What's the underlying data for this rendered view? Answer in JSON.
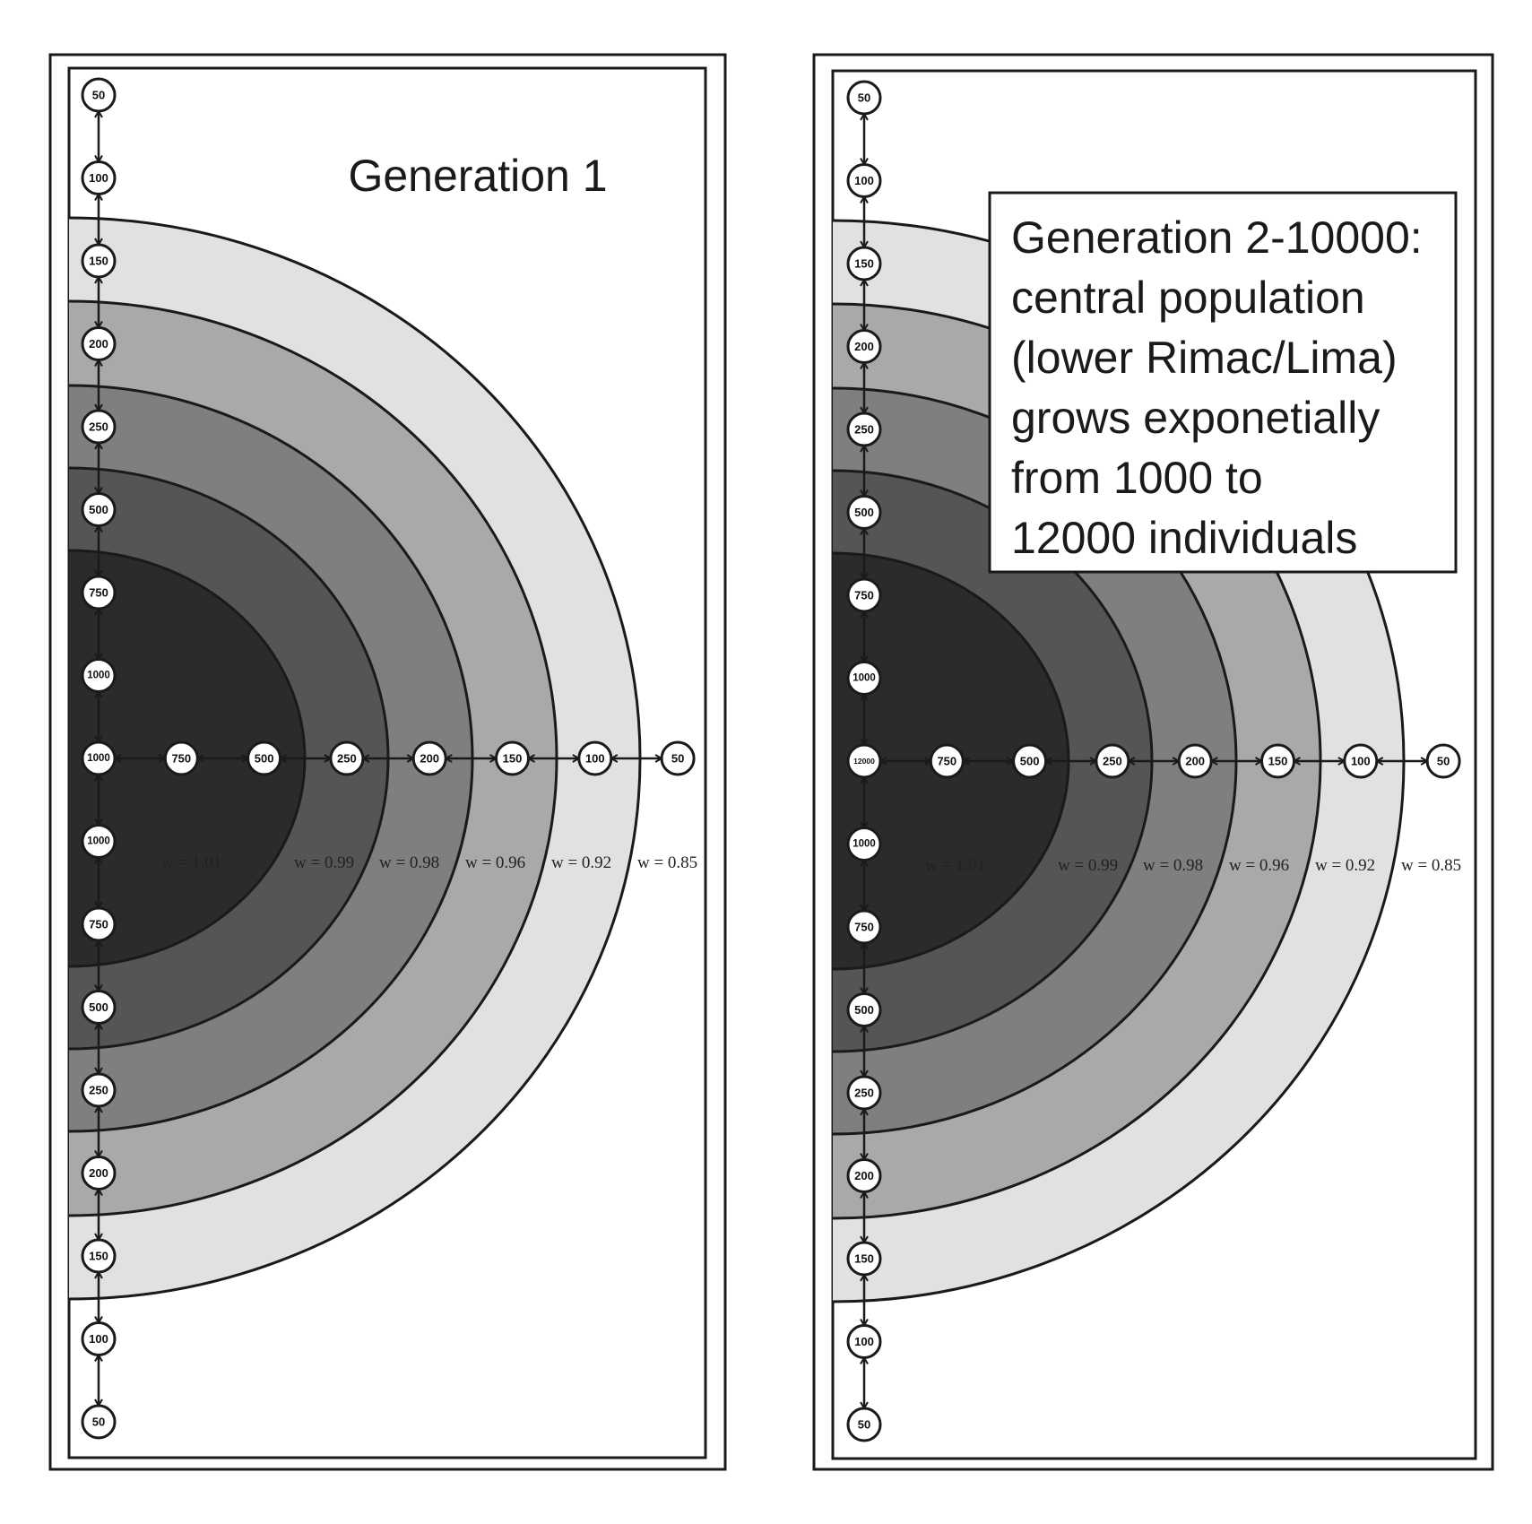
{
  "panels": [
    {
      "title": "Generation 1",
      "vertical_nodes": [
        "50",
        "100",
        "150",
        "200",
        "250",
        "500",
        "750",
        "1000",
        "1000",
        "1000",
        "750",
        "500",
        "250",
        "200",
        "150",
        "100",
        "50"
      ],
      "horizontal_nodes": [
        "1000",
        "750",
        "500",
        "250",
        "200",
        "150",
        "100",
        "50"
      ],
      "fitness_labels": [
        "w = 1.01",
        "w = 0.99",
        "w = 0.98",
        "w = 0.96",
        "w = 0.92",
        "w = 0.85"
      ]
    },
    {
      "title_lines": [
        "Generation 2-10000:",
        "central population",
        "(lower Rimac/Lima)",
        "grows exponetially",
        "from 1000 to",
        "12000 individuals"
      ],
      "vertical_nodes": [
        "50",
        "100",
        "150",
        "200",
        "250",
        "500",
        "750",
        "1000",
        "12000",
        "1000",
        "750",
        "500",
        "250",
        "200",
        "150",
        "100",
        "50"
      ],
      "horizontal_nodes": [
        "12000",
        "750",
        "500",
        "250",
        "200",
        "150",
        "100",
        "50"
      ],
      "fitness_labels": [
        "w = 1.01",
        "w = 0.99",
        "w = 0.98",
        "w = 0.96",
        "w = 0.92",
        "w = 0.85"
      ]
    }
  ],
  "colors": {
    "zones": [
      "#2b2b2b",
      "#555555",
      "#7f7f7f",
      "#a9a9a9",
      "#e1e1e1"
    ],
    "stroke": "#1a1a1a",
    "node_fill": "#ffffff",
    "background": "#ffffff"
  }
}
